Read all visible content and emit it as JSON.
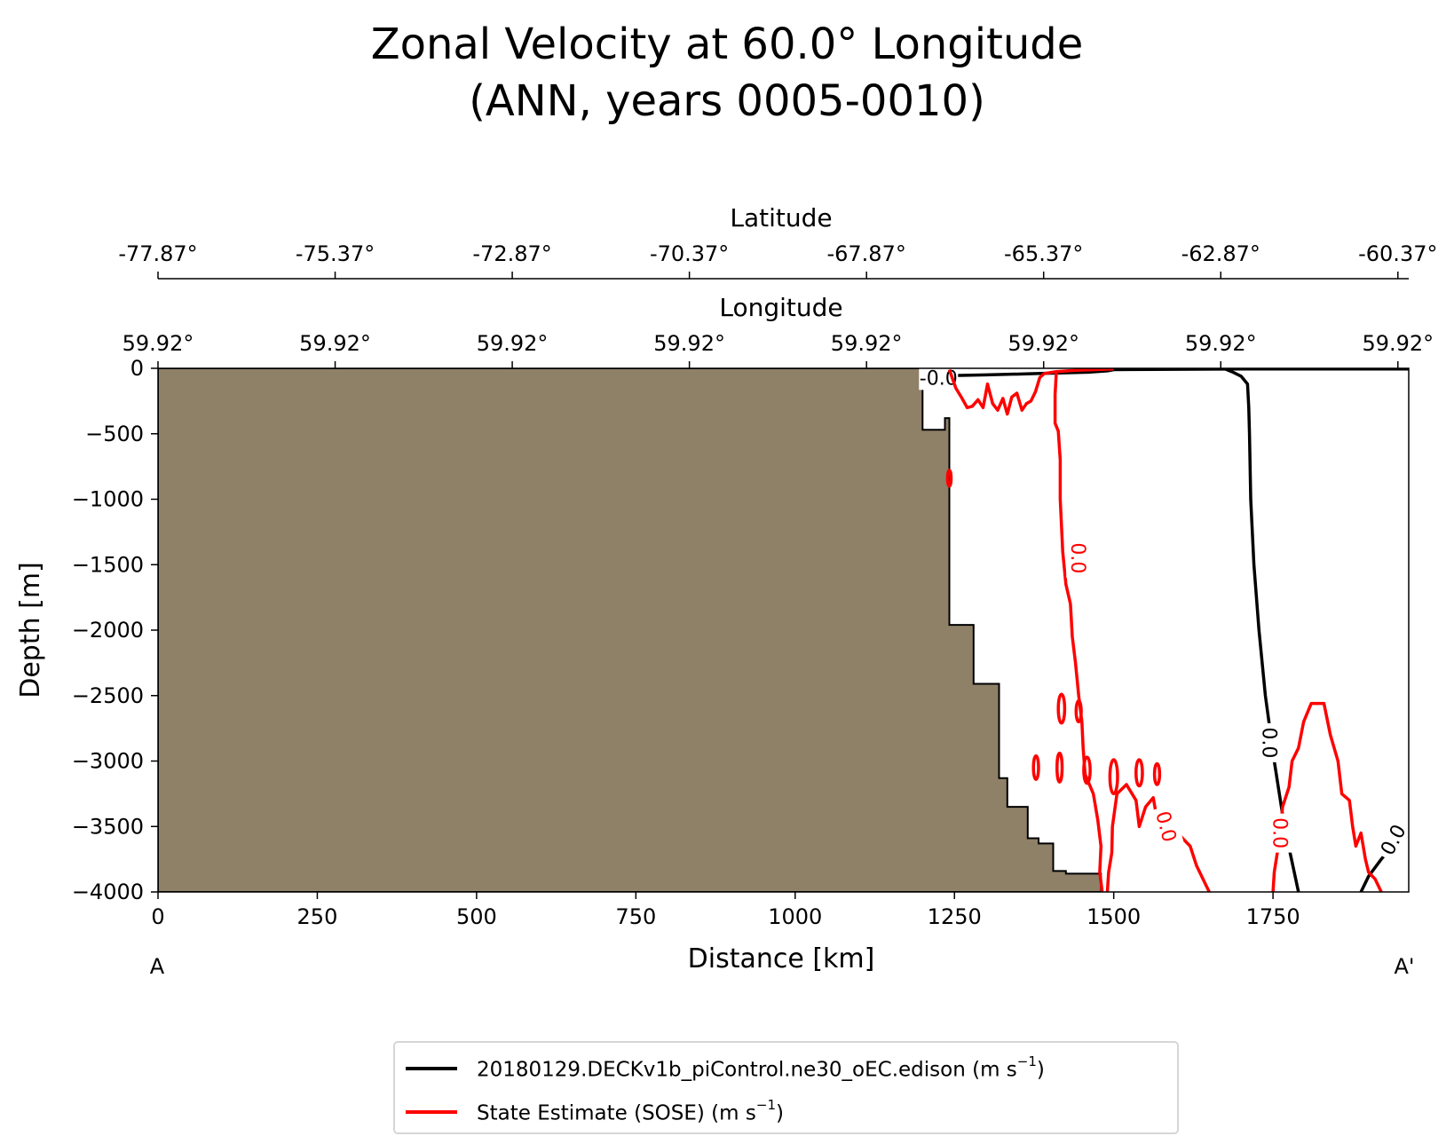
{
  "chart_data": {
    "type": "section",
    "title": "Zonal Velocity at 60.0° Longitude",
    "subtitle": "(ANN, years 0005-0010)",
    "xlabel": "Distance [km]",
    "ylabel": "Depth [m]",
    "xlim": [
      0,
      1963
    ],
    "ylim": [
      -4000,
      0
    ],
    "x_ticks": [
      0,
      250,
      500,
      750,
      1000,
      1250,
      1500,
      1750
    ],
    "x_tick_labels": [
      "0",
      "250",
      "500",
      "750",
      "1000",
      "1250",
      "1500",
      "1750"
    ],
    "y_ticks": [
      0,
      -500,
      -1000,
      -1500,
      -2000,
      -2500,
      -3000,
      -3500,
      -4000
    ],
    "y_tick_labels": [
      "0",
      "−500",
      "−1000",
      "−1500",
      "−2000",
      "−2500",
      "−3000",
      "−3500",
      "−4000"
    ],
    "top_axis_latitude": {
      "label": "Latitude",
      "ticks": [
        0,
        278,
        556,
        834,
        1112,
        1390,
        1668,
        1946
      ],
      "tick_labels": [
        "-77.87°",
        "-75.37°",
        "-72.87°",
        "-70.37°",
        "-67.87°",
        "-65.37°",
        "-62.87°",
        "-60.37°"
      ]
    },
    "top_axis_longitude": {
      "label": "Longitude",
      "ticks": [
        0,
        278,
        556,
        834,
        1112,
        1390,
        1668,
        1946
      ],
      "tick_labels": [
        "59.92°",
        "59.92°",
        "59.92°",
        "59.92°",
        "59.92°",
        "59.92°",
        "59.92°",
        "59.92°"
      ]
    },
    "endpoints": {
      "start": "A",
      "end": "A'"
    },
    "bathymetry": {
      "color": "#8f8068",
      "points": [
        [
          0,
          0
        ],
        [
          1200,
          0
        ],
        [
          1200,
          -470
        ],
        [
          1235,
          -470
        ],
        [
          1235,
          -380
        ],
        [
          1242,
          -380
        ],
        [
          1242,
          -1960
        ],
        [
          1280,
          -1960
        ],
        [
          1280,
          -2410
        ],
        [
          1320,
          -2410
        ],
        [
          1320,
          -3130
        ],
        [
          1333,
          -3130
        ],
        [
          1333,
          -3350
        ],
        [
          1365,
          -3350
        ],
        [
          1365,
          -3590
        ],
        [
          1382,
          -3590
        ],
        [
          1382,
          -3630
        ],
        [
          1405,
          -3630
        ],
        [
          1405,
          -3840
        ],
        [
          1425,
          -3840
        ],
        [
          1425,
          -3860
        ],
        [
          1480,
          -3860
        ],
        [
          1480,
          -4000
        ],
        [
          0,
          -4000
        ]
      ]
    },
    "series": [
      {
        "name": "20180129.DECKv1b_piControl.ne30_oEC.edison",
        "units": "m s",
        "units_exp": "−1",
        "color": "#000000",
        "contour_level_label": "0.0",
        "lines": [
          [
            [
              1250,
              -55
            ],
            [
              1300,
              -50
            ],
            [
              1380,
              -40
            ],
            [
              1460,
              -30
            ],
            [
              1490,
              -20
            ],
            [
              1500,
              -10
            ],
            [
              1560,
              -8
            ],
            [
              1700,
              -5
            ],
            [
              1963,
              -5
            ]
          ],
          [
            [
              1675,
              -5
            ],
            [
              1685,
              -25
            ],
            [
              1700,
              -60
            ],
            [
              1710,
              -120
            ],
            [
              1712,
              -300
            ],
            [
              1713,
              -500
            ],
            [
              1715,
              -1000
            ],
            [
              1720,
              -1500
            ],
            [
              1728,
              -2000
            ],
            [
              1738,
              -2500
            ],
            [
              1752,
              -3000
            ],
            [
              1768,
              -3500
            ],
            [
              1790,
              -4000
            ]
          ],
          [
            [
              1888,
              -4000
            ],
            [
              1900,
              -3880
            ],
            [
              1920,
              -3750
            ],
            [
              1945,
              -3600
            ],
            [
              1963,
              -3520
            ]
          ]
        ],
        "labels": [
          {
            "x": 1225,
            "y": -70,
            "text": "-0.0",
            "rot": 0
          },
          {
            "x": 1745,
            "y": -2860,
            "text": "0.0",
            "rot": 90
          },
          {
            "x": 1938,
            "y": -3600,
            "text": "0.0",
            "rot": -62
          }
        ]
      },
      {
        "name": "State Estimate (SOSE)",
        "units": "m s",
        "units_exp": "−1",
        "color": "#ff0000",
        "contour_level_label": "0.0",
        "lines": [
          [
            [
              1242,
              -10
            ],
            [
              1252,
              -150
            ],
            [
              1262,
              -230
            ],
            [
              1270,
              -300
            ],
            [
              1278,
              -290
            ],
            [
              1287,
              -240
            ],
            [
              1295,
              -300
            ],
            [
              1302,
              -120
            ],
            [
              1310,
              -270
            ],
            [
              1318,
              -320
            ],
            [
              1326,
              -230
            ],
            [
              1333,
              -350
            ],
            [
              1340,
              -220
            ],
            [
              1348,
              -190
            ],
            [
              1356,
              -320
            ],
            [
              1363,
              -270
            ],
            [
              1370,
              -250
            ],
            [
              1377,
              -180
            ],
            [
              1384,
              -70
            ],
            [
              1391,
              -40
            ],
            [
              1410,
              -25
            ],
            [
              1440,
              -15
            ],
            [
              1500,
              -5
            ]
          ],
          [
            [
              1410,
              -20
            ],
            [
              1408,
              -200
            ],
            [
              1408,
              -420
            ],
            [
              1413,
              -480
            ],
            [
              1416,
              -700
            ],
            [
              1416,
              -1000
            ],
            [
              1418,
              -1200
            ],
            [
              1420,
              -1400
            ],
            [
              1425,
              -1650
            ],
            [
              1432,
              -1800
            ],
            [
              1435,
              -2050
            ],
            [
              1440,
              -2250
            ],
            [
              1445,
              -2500
            ],
            [
              1450,
              -2700
            ],
            [
              1452,
              -2900
            ],
            [
              1455,
              -3100
            ],
            [
              1468,
              -3250
            ],
            [
              1475,
              -3450
            ],
            [
              1480,
              -3650
            ],
            [
              1478,
              -3850
            ],
            [
              1482,
              -4000
            ]
          ],
          [
            [
              1490,
              -4000
            ],
            [
              1492,
              -3850
            ],
            [
              1497,
              -3700
            ],
            [
              1498,
              -3500
            ],
            [
              1505,
              -3250
            ],
            [
              1520,
              -3180
            ],
            [
              1535,
              -3300
            ],
            [
              1540,
              -3500
            ],
            [
              1550,
              -3350
            ],
            [
              1562,
              -3280
            ],
            [
              1570,
              -3500
            ],
            [
              1585,
              -3600
            ],
            [
              1600,
              -3550
            ],
            [
              1620,
              -3650
            ],
            [
              1630,
              -3800
            ],
            [
              1645,
              -3950
            ],
            [
              1650,
              -4000
            ]
          ],
          [
            [
              1750,
              -4000
            ],
            [
              1752,
              -3850
            ],
            [
              1760,
              -3600
            ],
            [
              1765,
              -3350
            ],
            [
              1775,
              -3200
            ],
            [
              1780,
              -3000
            ],
            [
              1790,
              -2900
            ],
            [
              1798,
              -2700
            ],
            [
              1810,
              -2560
            ],
            [
              1830,
              -2560
            ],
            [
              1840,
              -2800
            ],
            [
              1852,
              -3000
            ],
            [
              1858,
              -3250
            ],
            [
              1870,
              -3300
            ],
            [
              1875,
              -3500
            ],
            [
              1880,
              -3650
            ],
            [
              1888,
              -3550
            ],
            [
              1895,
              -3750
            ],
            [
              1900,
              -3850
            ],
            [
              1910,
              -3900
            ],
            [
              1920,
              -4000
            ]
          ]
        ],
        "blobs": [
          {
            "x": 1242,
            "y": -840,
            "rx": 2,
            "ry": 60
          },
          {
            "x": 1418,
            "y": -2600,
            "rx": 5,
            "ry": 110
          },
          {
            "x": 1445,
            "y": -2620,
            "rx": 4,
            "ry": 80
          },
          {
            "x": 1378,
            "y": -3050,
            "rx": 4,
            "ry": 90
          },
          {
            "x": 1415,
            "y": -3050,
            "rx": 4,
            "ry": 110
          },
          {
            "x": 1458,
            "y": -3070,
            "rx": 5,
            "ry": 100
          },
          {
            "x": 1500,
            "y": -3120,
            "rx": 6,
            "ry": 130
          },
          {
            "x": 1540,
            "y": -3090,
            "rx": 5,
            "ry": 100
          },
          {
            "x": 1568,
            "y": -3100,
            "rx": 4,
            "ry": 80
          }
        ],
        "labels": [
          {
            "x": 1445,
            "y": -1450,
            "text": "0.0",
            "rot": 90
          },
          {
            "x": 1583,
            "y": -3500,
            "text": "0.0",
            "rot": 75
          },
          {
            "x": 1762,
            "y": -3550,
            "text": "0.0",
            "rot": 90
          }
        ]
      }
    ],
    "legend": {
      "location": "bottom-center"
    }
  }
}
